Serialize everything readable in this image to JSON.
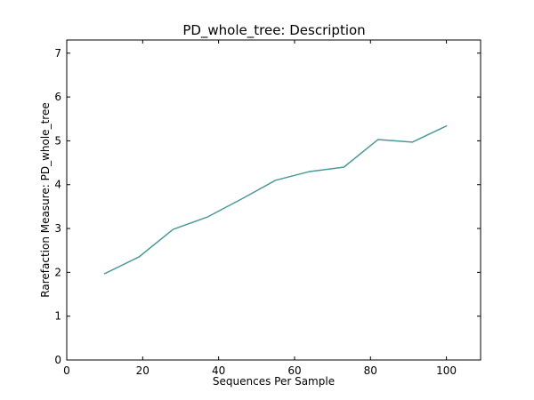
{
  "chart_data": {
    "type": "line",
    "title": "PD_whole_tree: Description",
    "xlabel": "Sequences Per Sample",
    "ylabel": "Rarefaction Measure: PD_whole_tree",
    "xlim": [
      0,
      109
    ],
    "ylim": [
      0,
      7.3
    ],
    "x_ticks": [
      0,
      20,
      40,
      60,
      80,
      100
    ],
    "y_ticks": [
      0,
      1,
      2,
      3,
      4,
      5,
      6,
      7
    ],
    "grid": false,
    "series": [
      {
        "color": "#4c9999",
        "x": [
          10,
          19,
          28,
          37,
          46,
          55,
          64,
          73,
          82,
          91,
          100
        ],
        "y": [
          1.97,
          2.35,
          2.98,
          3.26,
          3.67,
          4.1,
          4.3,
          4.4,
          5.03,
          4.97,
          5.34
        ]
      }
    ]
  }
}
